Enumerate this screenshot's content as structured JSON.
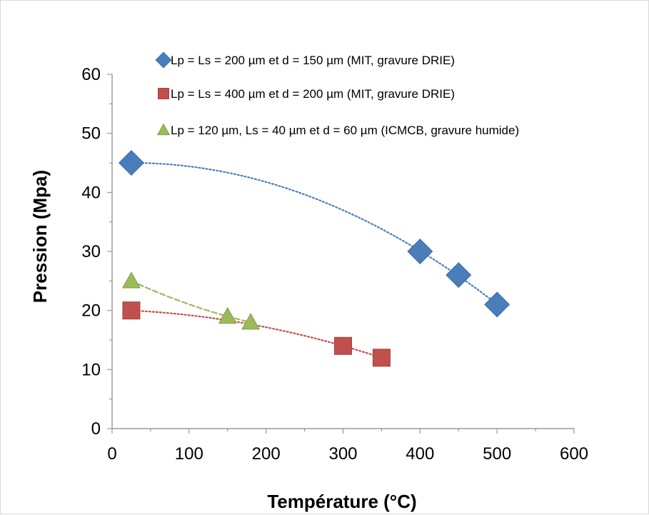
{
  "chart_data": {
    "type": "scatter",
    "xlabel": "Température (°C)",
    "ylabel": "Pression (Mpa)",
    "xlim": [
      0,
      600
    ],
    "ylim": [
      0,
      60
    ],
    "xticks": [
      0,
      100,
      200,
      300,
      400,
      500,
      600
    ],
    "yticks": [
      0,
      10,
      20,
      30,
      40,
      50,
      60
    ],
    "xtick_labels": [
      "0",
      "100",
      "200",
      "300",
      "400",
      "500",
      "600"
    ],
    "ytick_labels": [
      "0",
      "10",
      "20",
      "30",
      "40",
      "50",
      "60"
    ],
    "grid": false,
    "legend_position": "top-right",
    "series": [
      {
        "name": "Lp = Ls = 200 µm et d = 150 µm (MIT, gravure DRIE)",
        "marker": "diamond",
        "color": "#4a7ebb",
        "points": [
          [
            25,
            45
          ],
          [
            400,
            30
          ],
          [
            450,
            26
          ],
          [
            500,
            21
          ]
        ],
        "trendline": "polynomial",
        "trend_style": "dotted"
      },
      {
        "name": "Lp = Ls = 400 µm et d = 200 µm (MIT, gravure DRIE)",
        "marker": "square",
        "color": "#c0504d",
        "points": [
          [
            25,
            20
          ],
          [
            300,
            14
          ],
          [
            350,
            12
          ]
        ],
        "trendline": "polynomial",
        "trend_style": "dotted"
      },
      {
        "name": "Lp = 120 µm, Ls = 40 µm et d = 60 µm (ICMCB, gravure humide)",
        "marker": "triangle",
        "color": "#9bbb59",
        "points": [
          [
            25,
            25
          ],
          [
            150,
            19
          ],
          [
            180,
            18
          ]
        ],
        "trendline": "polynomial",
        "trend_style": "dashed"
      }
    ]
  }
}
